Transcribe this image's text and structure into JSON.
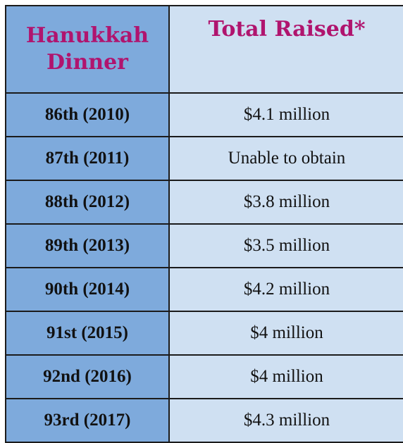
{
  "table": {
    "headers": [
      "Hanukkah Dinner",
      "Total Raised*"
    ],
    "rows": [
      {
        "edition": "86th (2010)",
        "raised": "$4.1 million"
      },
      {
        "edition": "87th (2011)",
        "raised": "Unable to obtain"
      },
      {
        "edition": "88th (2012)",
        "raised": "$3.8 million"
      },
      {
        "edition": "89th (2013)",
        "raised": "$3.5 million"
      },
      {
        "edition": "90th (2014)",
        "raised": "$4.2 million"
      },
      {
        "edition": "91st (2015)",
        "raised": "$4 million"
      },
      {
        "edition": "92nd (2016)",
        "raised": "$4 million"
      },
      {
        "edition": "93rd (2017)",
        "raised": "$4.3 million"
      }
    ]
  },
  "colors": {
    "header_text": "#b0146e",
    "left_column_bg": "#7eaadc",
    "right_column_bg": "#cfe0f2",
    "border": "#1b1b1b"
  }
}
